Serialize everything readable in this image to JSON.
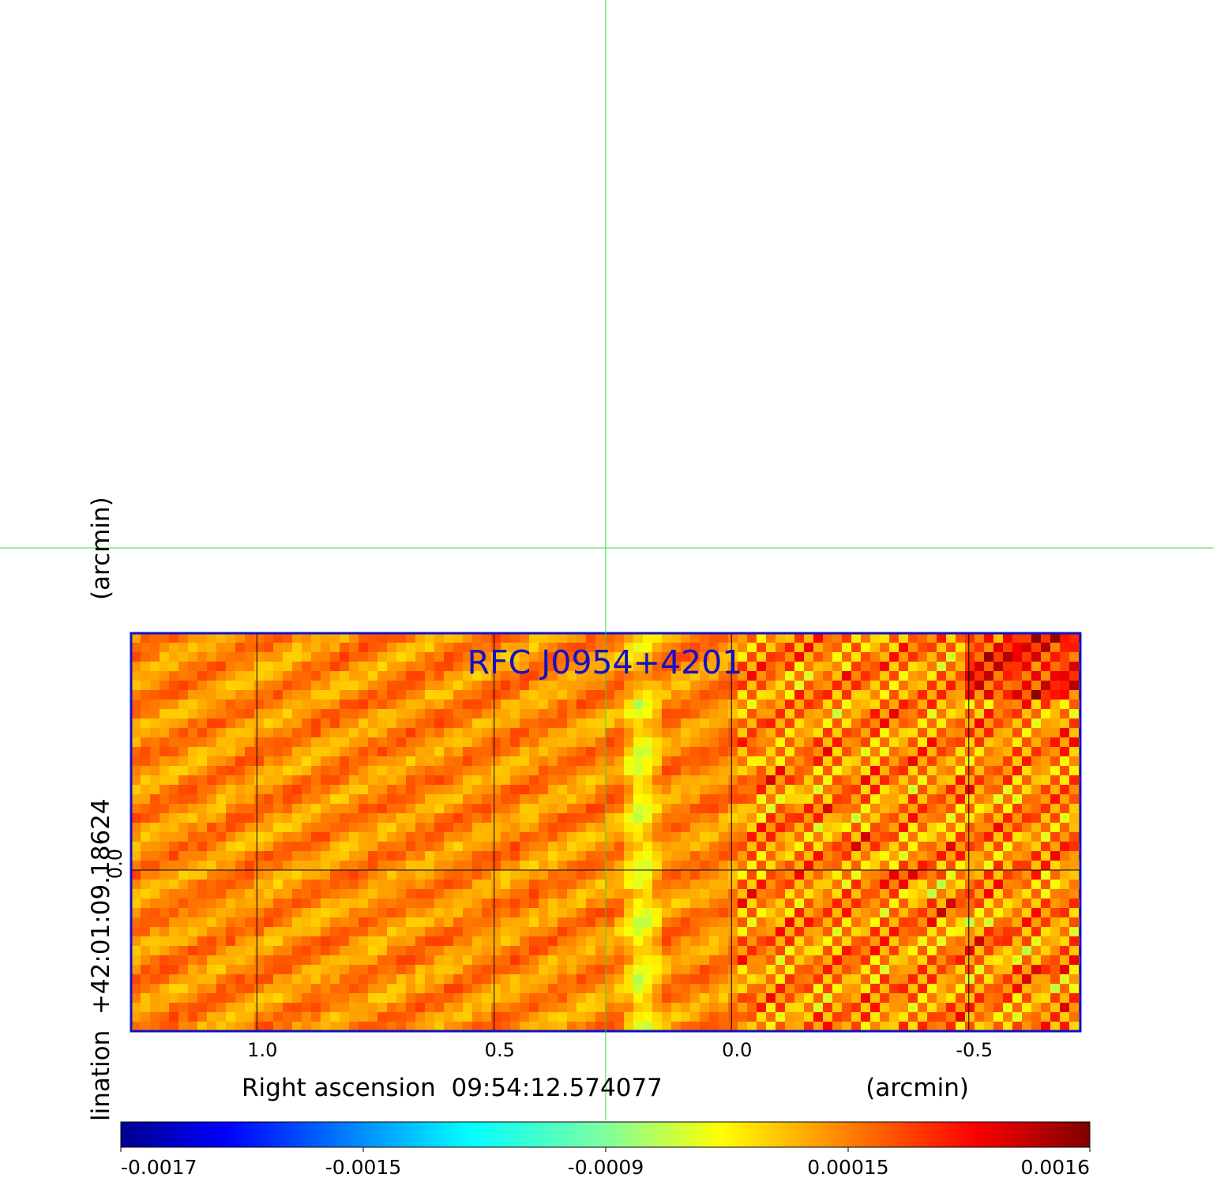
{
  "chart_data": {
    "type": "heatmap",
    "title": "RFC J0954+4201",
    "xlabel": "Right ascension  09:54:12.574077",
    "xlabel_unit": "(arcmin)",
    "ylabel": "lination  +42:01:09.18624",
    "ylabel_unit": "(arcmin)",
    "x_ticks": [
      "1.0",
      "0.5",
      "0.0",
      "-0.5"
    ],
    "x_tick_values": [
      1.0,
      0.5,
      0.0,
      -0.5
    ],
    "y_ticks": [
      "0.0"
    ],
    "y_tick_values": [
      0.0
    ],
    "xlim": [
      1.265,
      -0.735
    ],
    "ylim": [
      -0.34,
      0.5
    ],
    "grid": true,
    "crosshair": {
      "x": 0.265,
      "y": 0.68,
      "color": "#33dd33"
    },
    "colormap": "jet",
    "colorbar": {
      "ticks": [
        "-0.0017",
        "-0.0015",
        "-0.0009",
        "0.00015",
        "0.0016"
      ],
      "tick_values": [
        -0.0017,
        -0.0015,
        -0.0009,
        0.00015,
        0.0016
      ],
      "range": [
        -0.0017,
        0.0016
      ]
    },
    "frame_color": "#1010c8"
  }
}
